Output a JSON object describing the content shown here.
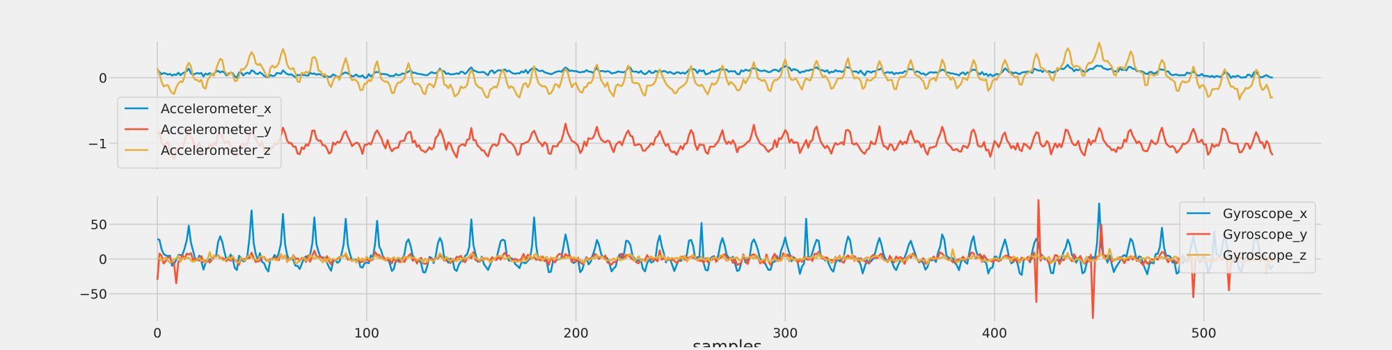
{
  "chart_data": [
    {
      "type": "line",
      "title": "",
      "xlabel": "",
      "ylabel": "",
      "xlim": [
        -23,
        556
      ],
      "ylim": [
        -1.4,
        0.55
      ],
      "xticks": [
        0,
        100,
        200,
        300,
        400,
        500
      ],
      "yticks": [
        -1,
        0
      ],
      "ytick_labels": [
        "−1",
        "0"
      ],
      "grid": true,
      "legend_position": "left-middle",
      "n_samples": 534,
      "series": [
        {
          "name": "Accelerometer_x",
          "color": "#008fd5",
          "base": 0.04,
          "amp": 0.05,
          "period": 15,
          "noise": 0.035,
          "keypoints": [
            [
              0,
              0.07
            ],
            [
              50,
              0.05
            ],
            [
              100,
              0.03
            ],
            [
              150,
              0.09
            ],
            [
              200,
              0.1
            ],
            [
              250,
              0.08
            ],
            [
              300,
              0.12
            ],
            [
              350,
              0.08
            ],
            [
              400,
              0.06
            ],
            [
              450,
              0.14
            ],
            [
              500,
              0.03
            ],
            [
              530,
              0.02
            ]
          ]
        },
        {
          "name": "Accelerometer_y",
          "color": "#fc4f30",
          "base": -1.05,
          "amp": 0.22,
          "period": 15,
          "noise": 0.09,
          "keypoints": [
            [
              0,
              -1.05
            ],
            [
              50,
              -1.03
            ],
            [
              100,
              -1.0
            ],
            [
              150,
              -1.05
            ],
            [
              200,
              -0.98
            ],
            [
              250,
              -1.04
            ],
            [
              300,
              -1.0
            ],
            [
              350,
              -1.02
            ],
            [
              400,
              -1.03
            ],
            [
              450,
              -1.02
            ],
            [
              500,
              -1.0
            ],
            [
              530,
              -1.03
            ]
          ]
        },
        {
          "name": "Accelerometer_z",
          "color": "#e5ae38",
          "base": -0.05,
          "amp": 0.28,
          "period": 15,
          "noise": 0.05,
          "keypoints": [
            [
              0,
              -0.15
            ],
            [
              50,
              0.18
            ],
            [
              100,
              -0.05
            ],
            [
              150,
              -0.15
            ],
            [
              200,
              -0.1
            ],
            [
              250,
              -0.12
            ],
            [
              300,
              -0.02
            ],
            [
              350,
              0.0
            ],
            [
              400,
              -0.02
            ],
            [
              450,
              0.25
            ],
            [
              500,
              -0.15
            ],
            [
              530,
              -0.15
            ]
          ]
        }
      ],
      "legend": [
        "Accelerometer_x",
        "Accelerometer_y",
        "Accelerometer_z"
      ]
    },
    {
      "type": "line",
      "title": "",
      "xlabel": "samples",
      "ylabel": "",
      "xlim": [
        -23,
        556
      ],
      "ylim": [
        -90,
        90
      ],
      "xticks": [
        0,
        100,
        200,
        300,
        400,
        500
      ],
      "yticks": [
        -50,
        0,
        50
      ],
      "ytick_labels": [
        "−50",
        "0",
        "50"
      ],
      "grid": true,
      "legend_position": "top-right",
      "n_samples": 534,
      "series": [
        {
          "name": "Gyroscope_x",
          "color": "#008fd5",
          "base": 0.0,
          "amp": 30,
          "period": 15,
          "noise": 8,
          "spikes": [
            [
              15,
              48
            ],
            [
              45,
              70
            ],
            [
              60,
              65
            ],
            [
              75,
              60
            ],
            [
              90,
              58
            ],
            [
              105,
              55
            ],
            [
              150,
              57
            ],
            [
              180,
              60
            ],
            [
              260,
              52
            ],
            [
              310,
              58
            ],
            [
              450,
              80
            ],
            [
              480,
              45
            ],
            [
              505,
              40
            ]
          ],
          "keypoints": [
            [
              0,
              5
            ],
            [
              100,
              0
            ],
            [
              200,
              0
            ],
            [
              300,
              0
            ],
            [
              400,
              0
            ],
            [
              500,
              0
            ],
            [
              530,
              0
            ]
          ]
        },
        {
          "name": "Gyroscope_y",
          "color": "#fc4f30",
          "base": 0.0,
          "amp": 6,
          "period": 15,
          "noise": 8,
          "spikes": [
            [
              0,
              -30
            ],
            [
              9,
              -35
            ],
            [
              421,
              85
            ],
            [
              420,
              -62
            ],
            [
              447,
              -85
            ],
            [
              451,
              50
            ],
            [
              495,
              -55
            ],
            [
              512,
              -45
            ]
          ],
          "keypoints": [
            [
              0,
              0
            ],
            [
              530,
              0
            ]
          ]
        },
        {
          "name": "Gyroscope_z",
          "color": "#e5ae38",
          "base": 0.0,
          "amp": 4,
          "period": 15,
          "noise": 6,
          "spikes": [
            [
              25,
              10
            ],
            [
              380,
              14
            ],
            [
              455,
              15
            ],
            [
              530,
              -20
            ]
          ],
          "keypoints": [
            [
              0,
              0
            ],
            [
              530,
              0
            ]
          ]
        }
      ],
      "legend": [
        "Gyroscope_x",
        "Gyroscope_y",
        "Gyroscope_z"
      ]
    }
  ],
  "labels": {
    "xticks": [
      "0",
      "100",
      "200",
      "300",
      "400",
      "500"
    ],
    "xaxis_title": "samples"
  }
}
